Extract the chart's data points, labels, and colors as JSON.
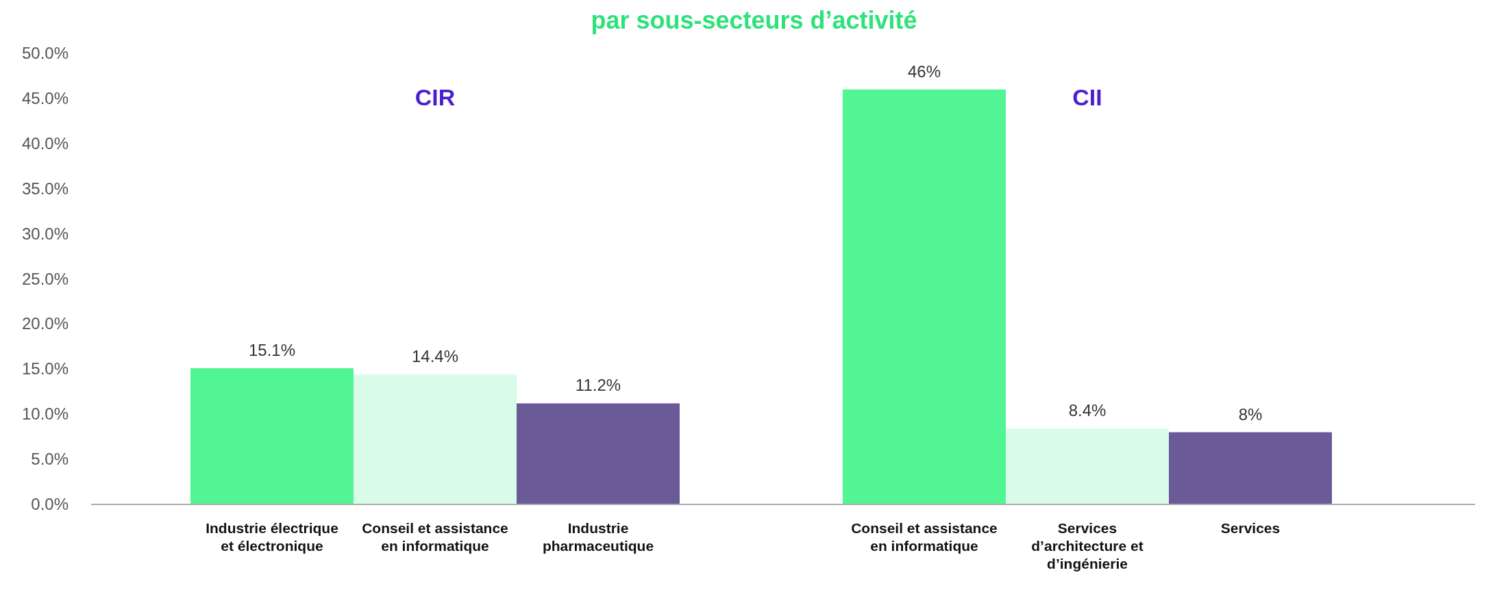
{
  "chart_data": {
    "type": "bar",
    "title": "par sous-secteurs d’activité",
    "categories": [
      "Industrie électrique\net électronique",
      "Conseil et assistance\nen informatique",
      "Industrie\npharmaceutique",
      null,
      "Conseil et assistance\nen informatique",
      "Services\nd’architecture et\nd’ingénierie",
      "Services"
    ],
    "values": [
      15.1,
      14.4,
      11.2,
      null,
      46,
      8.4,
      8
    ],
    "value_labels": [
      "15.1%",
      "14.4%",
      "11.2%",
      null,
      "46%",
      "8.4%",
      "8%"
    ],
    "colors": [
      "#52f593",
      "#d9fce9",
      "#6a5a97",
      null,
      "#52f593",
      "#d9fce9",
      "#6a5a97"
    ],
    "annotations": [
      "CIR",
      "CII"
    ],
    "ylim": [
      0,
      50
    ],
    "yticks": [
      {
        "value": 0,
        "label": "0.0%"
      },
      {
        "value": 5,
        "label": "5.0%"
      },
      {
        "value": 10,
        "label": "10.0%"
      },
      {
        "value": 15,
        "label": "15.0%"
      },
      {
        "value": 20,
        "label": "20.0%"
      },
      {
        "value": 25,
        "label": "25.0%"
      },
      {
        "value": 30,
        "label": "30.0%"
      },
      {
        "value": 35,
        "label": "35.0%"
      },
      {
        "value": 40,
        "label": "40.0%"
      },
      {
        "value": 45,
        "label": "45.0%"
      },
      {
        "value": 50,
        "label": "50.0%"
      }
    ],
    "grid": false
  }
}
